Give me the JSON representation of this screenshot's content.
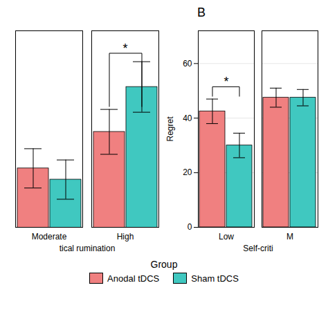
{
  "chart_data": [
    {
      "type": "bar",
      "xlabel": "tical rumination",
      "categories": [
        "Moderate",
        "High"
      ],
      "series": [
        {
          "name": "Anodal tDCS",
          "color": "#F08080",
          "values": [
            54.5,
            61.0
          ],
          "errors": [
            3.5,
            4.0
          ]
        },
        {
          "name": "Sham tDCS",
          "color": "#40C8C0",
          "values": [
            52.5,
            69.0
          ],
          "errors": [
            3.5,
            4.5
          ]
        }
      ],
      "ylim": [
        44,
        79
      ],
      "yticks": [],
      "tick_labels": "x",
      "grid": false,
      "annotations": [
        {
          "text": "*",
          "category": "High",
          "y": 75.0,
          "bracket_bottom": 65.5
        }
      ]
    },
    {
      "type": "bar",
      "title": "B",
      "xlabel": "Self-criti",
      "ylabel": "Regret",
      "categories": [
        "Low",
        "M"
      ],
      "series": [
        {
          "name": "Anodal tDCS",
          "color": "#F08080",
          "values": [
            42.5,
            47.5
          ],
          "errors": [
            4.5,
            3.5
          ]
        },
        {
          "name": "Sham tDCS",
          "color": "#40C8C0",
          "values": [
            30.0,
            47.5
          ],
          "errors": [
            4.5,
            3.0
          ]
        }
      ],
      "ylim": [
        0,
        72
      ],
      "yticks": [
        0,
        20,
        40,
        60
      ],
      "grid": true,
      "legend": "bottom",
      "legend_title": "Group",
      "annotations": [
        {
          "text": "*",
          "category": "Low",
          "y": 51.5,
          "bracket_bottom": 48.0
        }
      ]
    }
  ]
}
